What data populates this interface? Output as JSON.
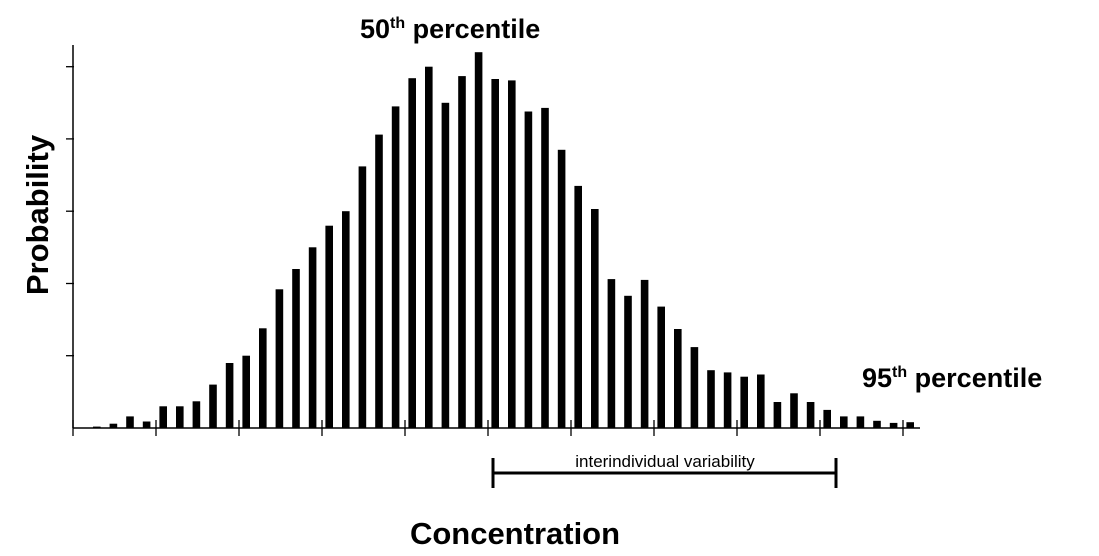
{
  "chart_data": {
    "type": "bar",
    "xlabel": "Concentration",
    "ylabel": "Probability",
    "annotations": {
      "p50": {
        "base": "50",
        "sup": "th",
        "text": " percentile"
      },
      "p95": {
        "base": "95",
        "sup": "th",
        "text": " percentile"
      },
      "variability": "interindividual  variability"
    },
    "bar_color": "#000000",
    "ylim": [
      0,
      5.3
    ],
    "grid": false,
    "legend": "none",
    "values": [
      0.02,
      0.06,
      0.16,
      0.09,
      0.3,
      0.3,
      0.37,
      0.6,
      0.9,
      1.0,
      1.38,
      1.92,
      2.2,
      2.5,
      2.8,
      3.0,
      3.62,
      4.06,
      4.45,
      4.84,
      5.0,
      4.5,
      4.87,
      5.2,
      4.83,
      4.81,
      4.38,
      4.43,
      3.85,
      3.35,
      3.03,
      2.06,
      1.83,
      2.05,
      1.68,
      1.37,
      1.12,
      0.8,
      0.77,
      0.71,
      0.74,
      0.36,
      0.48,
      0.36,
      0.25,
      0.16,
      0.16,
      0.1,
      0.07,
      0.08
    ]
  }
}
